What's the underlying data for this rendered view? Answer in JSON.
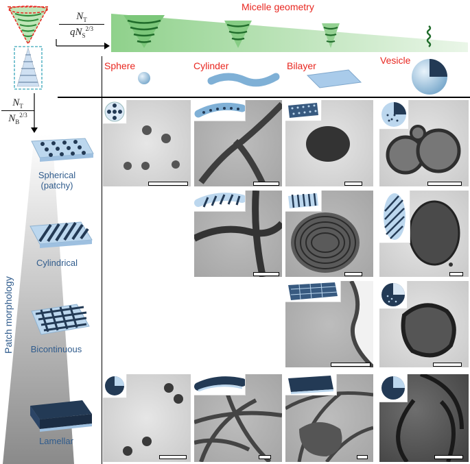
{
  "header": {
    "micelle_geometry_title": "Micelle geometry",
    "x_fraction": {
      "numerator": "N_T",
      "denominator": "qN_S^2/3"
    },
    "y_fraction": {
      "numerator": "N_T",
      "denominator": "N_B^2/3"
    },
    "patch_morphology_label": "Patch morphology"
  },
  "columns": [
    {
      "label": "Sphere"
    },
    {
      "label": "Cylinder"
    },
    {
      "label": "Bilayer"
    },
    {
      "label": "Vesicle"
    }
  ],
  "rows": [
    {
      "label": "Spherical\n(patchy)"
    },
    {
      "label": "Cylindrical"
    },
    {
      "label": "Bicontinuous"
    },
    {
      "label": "Lamellar"
    }
  ],
  "colors": {
    "title_red": "#e8261f",
    "patch_blue": "#2f5b8c",
    "micelle_green": "#2e8b3a",
    "micelle_fill": "#8fd18b",
    "dashed_red": "#e8261f",
    "dashed_cyan": "#3aa6b9"
  }
}
